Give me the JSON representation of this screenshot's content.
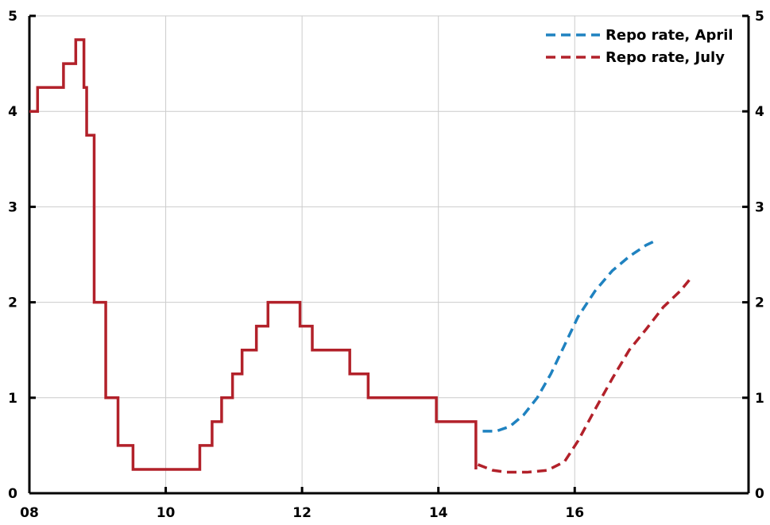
{
  "chart_data": {
    "type": "line",
    "title": "",
    "xlabel": "",
    "ylabel": "",
    "x_domain": [
      2008,
      2018.55
    ],
    "ylim": [
      0,
      5
    ],
    "x_ticks": [
      {
        "value": 2008,
        "label": "08"
      },
      {
        "value": 2010,
        "label": "10"
      },
      {
        "value": 2012,
        "label": "12"
      },
      {
        "value": 2014,
        "label": "14"
      },
      {
        "value": 2016,
        "label": "16"
      }
    ],
    "y_ticks": [
      {
        "value": 0,
        "label": "0"
      },
      {
        "value": 1,
        "label": "1"
      },
      {
        "value": 2,
        "label": "2"
      },
      {
        "value": 3,
        "label": "3"
      },
      {
        "value": 4,
        "label": "4"
      },
      {
        "value": 5,
        "label": "5"
      }
    ],
    "grid": true,
    "legend_position": "top-right",
    "series": [
      {
        "name": "",
        "role": "outcome",
        "style": "solid",
        "color": "#b2212a",
        "step": true,
        "points": [
          [
            2008.0,
            4.0
          ],
          [
            2008.12,
            4.25
          ],
          [
            2008.5,
            4.5
          ],
          [
            2008.68,
            4.75
          ],
          [
            2008.8,
            4.25
          ],
          [
            2008.84,
            3.75
          ],
          [
            2008.95,
            2.0
          ],
          [
            2009.12,
            1.0
          ],
          [
            2009.3,
            0.5
          ],
          [
            2009.52,
            0.25
          ],
          [
            2010.5,
            0.5
          ],
          [
            2010.68,
            0.75
          ],
          [
            2010.82,
            1.0
          ],
          [
            2010.98,
            1.25
          ],
          [
            2011.12,
            1.5
          ],
          [
            2011.33,
            1.75
          ],
          [
            2011.5,
            2.0
          ],
          [
            2011.97,
            1.75
          ],
          [
            2012.15,
            1.5
          ],
          [
            2012.7,
            1.25
          ],
          [
            2012.97,
            1.0
          ],
          [
            2013.97,
            0.75
          ],
          [
            2014.55,
            0.25
          ],
          [
            2014.55,
            0.25
          ]
        ]
      },
      {
        "name": "Repo rate, April",
        "role": "forecast",
        "style": "dashed",
        "color": "#1f82c0",
        "step": false,
        "points": [
          [
            2014.65,
            0.65
          ],
          [
            2014.85,
            0.65
          ],
          [
            2015.05,
            0.7
          ],
          [
            2015.25,
            0.82
          ],
          [
            2015.45,
            1.0
          ],
          [
            2015.65,
            1.25
          ],
          [
            2015.85,
            1.55
          ],
          [
            2016.05,
            1.85
          ],
          [
            2016.3,
            2.12
          ],
          [
            2016.55,
            2.33
          ],
          [
            2016.8,
            2.48
          ],
          [
            2017.05,
            2.6
          ],
          [
            2017.2,
            2.65
          ]
        ]
      },
      {
        "name": "Repo rate, July",
        "role": "forecast",
        "style": "dashed",
        "color": "#b2212a",
        "step": false,
        "points": [
          [
            2014.58,
            0.3
          ],
          [
            2014.8,
            0.24
          ],
          [
            2015.0,
            0.22
          ],
          [
            2015.3,
            0.22
          ],
          [
            2015.6,
            0.24
          ],
          [
            2015.85,
            0.33
          ],
          [
            2016.05,
            0.55
          ],
          [
            2016.3,
            0.88
          ],
          [
            2016.55,
            1.2
          ],
          [
            2016.8,
            1.5
          ],
          [
            2017.05,
            1.72
          ],
          [
            2017.3,
            1.95
          ],
          [
            2017.55,
            2.12
          ],
          [
            2017.7,
            2.25
          ]
        ]
      }
    ]
  }
}
